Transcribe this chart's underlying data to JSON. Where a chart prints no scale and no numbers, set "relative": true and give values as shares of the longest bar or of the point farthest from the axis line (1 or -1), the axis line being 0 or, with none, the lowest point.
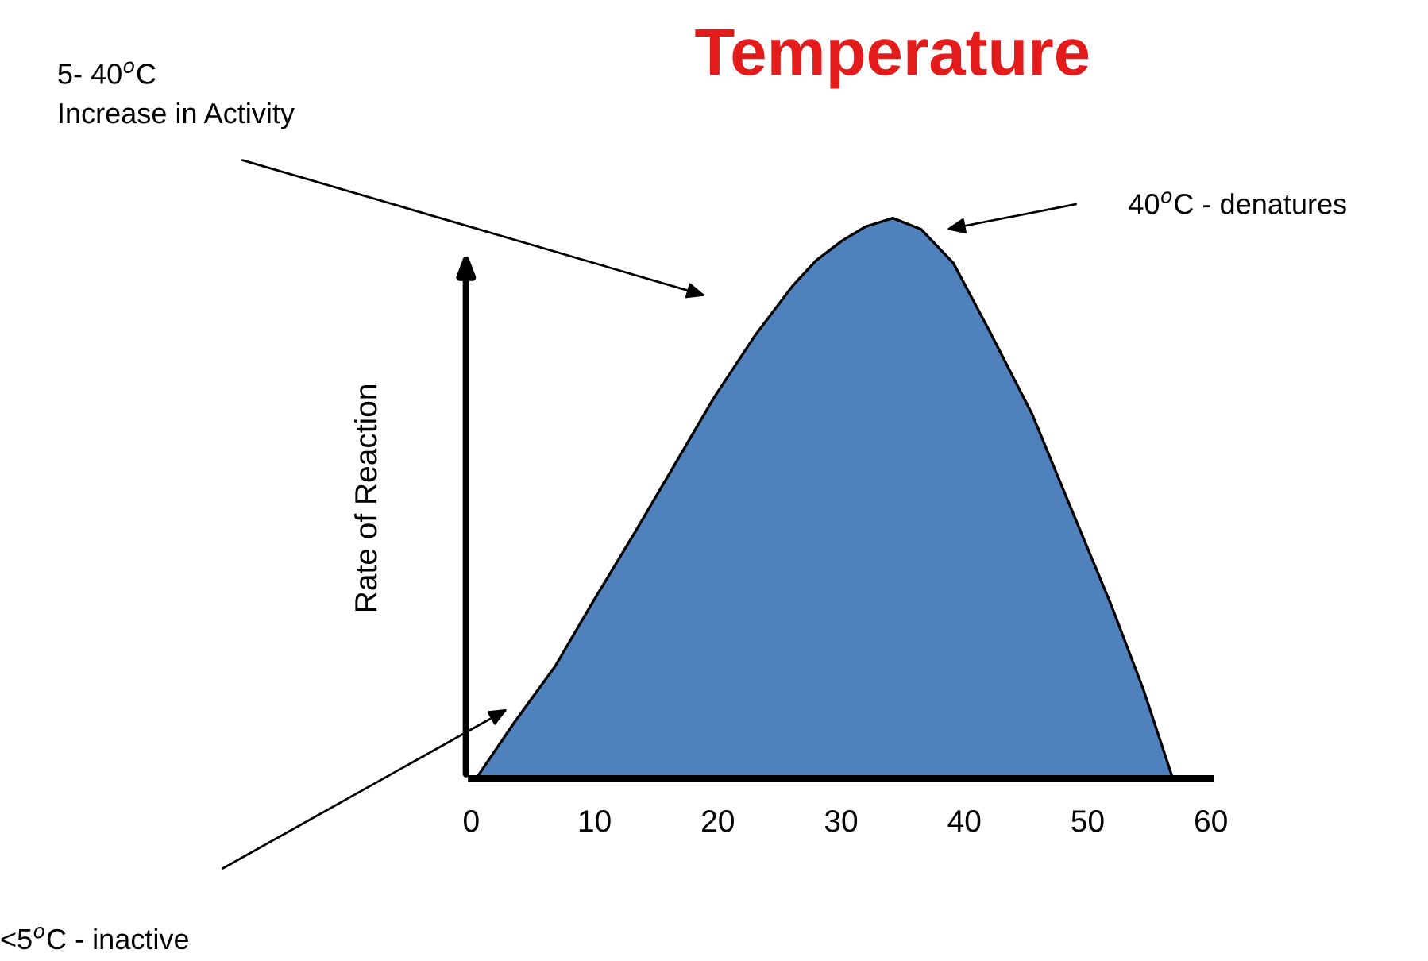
{
  "chart_data": {
    "type": "area",
    "title": "Temperature",
    "ylabel": "Rate of Reaction",
    "relative": true,
    "x": [
      0.4,
      3.5,
      6.8,
      10,
      13.3,
      16.5,
      19.7,
      23,
      26.1,
      28,
      30.1,
      32,
      34.2,
      36.5,
      39.1,
      42,
      45.5,
      48.5,
      51.9,
      54.5,
      56.9
    ],
    "xlim": [
      0,
      60
    ],
    "xticks": [
      0,
      10,
      20,
      30,
      40,
      50,
      60
    ],
    "series": [
      {
        "color": "#4f81bd",
        "values": [
          0,
          0.1,
          0.2,
          0.32,
          0.44,
          0.56,
          0.68,
          0.79,
          0.88,
          0.925,
          0.96,
          0.985,
          1.0,
          0.98,
          0.92,
          0.8,
          0.65,
          0.49,
          0.31,
          0.16,
          0
        ]
      }
    ],
    "annotations": [
      "5- 40$^{o}$C\nIncrease in Activity",
      "40$^{o}$C - denatures",
      "<5$^{o}$C - inactive"
    ],
    "grid": false
  }
}
